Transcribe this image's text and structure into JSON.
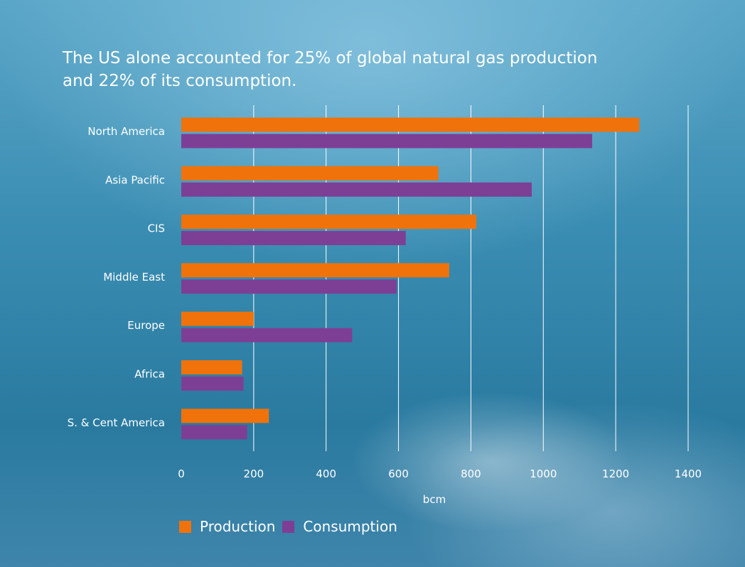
{
  "title": "The US alone accounted for 25% of global natural gas production and 22% of its consumption.",
  "colors": {
    "production": "#f0720a",
    "consumption": "#7d3f96",
    "gridline": "#ffffff"
  },
  "chart_data": {
    "type": "bar",
    "orientation": "horizontal",
    "title": "The US alone accounted for 25% of global natural gas production and 22% of its consumption.",
    "xlabel": "bcm",
    "ylabel": "",
    "xlim": [
      0,
      1400
    ],
    "xticks": [
      "0",
      "200",
      "400",
      "600",
      "800",
      "1000",
      "1200",
      "1400"
    ],
    "grid": true,
    "legend_position": "bottom-left",
    "categories": [
      "North America",
      "Asia Pacific",
      "CIS",
      "Middle East",
      "Europe",
      "Africa",
      "S. & Cent America"
    ],
    "series": [
      {
        "name": "Production",
        "color": "#f0720a",
        "values": [
          1265,
          710,
          815,
          740,
          200,
          168,
          242
        ]
      },
      {
        "name": "Consumption",
        "color": "#7d3f96",
        "values": [
          1135,
          968,
          620,
          595,
          472,
          172,
          182
        ]
      }
    ]
  }
}
